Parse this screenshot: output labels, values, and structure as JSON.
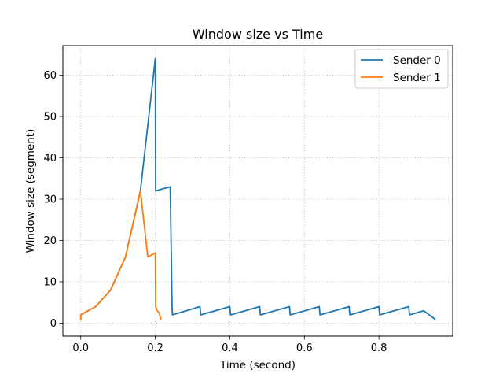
{
  "chart_data": {
    "type": "line",
    "title": "Window size vs Time",
    "xlabel": "Time (second)",
    "ylabel": "Window size (segment)",
    "xlim": [
      -0.048,
      0.998
    ],
    "ylim": [
      -3.15,
      67.15
    ],
    "xticks": [
      0.0,
      0.2,
      0.4,
      0.6,
      0.8
    ],
    "xtick_labels": [
      "0.0",
      "0.2",
      "0.4",
      "0.6",
      "0.8"
    ],
    "yticks": [
      0,
      10,
      20,
      30,
      40,
      50,
      60
    ],
    "ytick_labels": [
      "0",
      "10",
      "20",
      "30",
      "40",
      "50",
      "60"
    ],
    "grid": true,
    "legend_position": "top-right",
    "series": [
      {
        "name": "Sender 0",
        "color": "#1f77b4",
        "points": [
          [
            0.0,
            1
          ],
          [
            0.0,
            2
          ],
          [
            0.04,
            4
          ],
          [
            0.08,
            8
          ],
          [
            0.12,
            16
          ],
          [
            0.16,
            32
          ],
          [
            0.2,
            64
          ],
          [
            0.201,
            32
          ],
          [
            0.24,
            33
          ],
          [
            0.243,
            16
          ],
          [
            0.245,
            4
          ],
          [
            0.246,
            2
          ],
          [
            0.32,
            4
          ],
          [
            0.322,
            2
          ],
          [
            0.4,
            4
          ],
          [
            0.402,
            2
          ],
          [
            0.48,
            4
          ],
          [
            0.482,
            2
          ],
          [
            0.56,
            4
          ],
          [
            0.562,
            2
          ],
          [
            0.64,
            4
          ],
          [
            0.642,
            2
          ],
          [
            0.72,
            4
          ],
          [
            0.722,
            2
          ],
          [
            0.8,
            4
          ],
          [
            0.802,
            2
          ],
          [
            0.88,
            4
          ],
          [
            0.882,
            2
          ],
          [
            0.92,
            3
          ],
          [
            0.95,
            1
          ]
        ]
      },
      {
        "name": "Sender 1",
        "color": "#ff7f0e",
        "points": [
          [
            0.0,
            1
          ],
          [
            0.0,
            2
          ],
          [
            0.04,
            4
          ],
          [
            0.08,
            8
          ],
          [
            0.12,
            16
          ],
          [
            0.16,
            32
          ],
          [
            0.18,
            16
          ],
          [
            0.2,
            17
          ],
          [
            0.201,
            4
          ],
          [
            0.205,
            3
          ],
          [
            0.21,
            2.5
          ],
          [
            0.215,
            1
          ]
        ]
      }
    ]
  }
}
